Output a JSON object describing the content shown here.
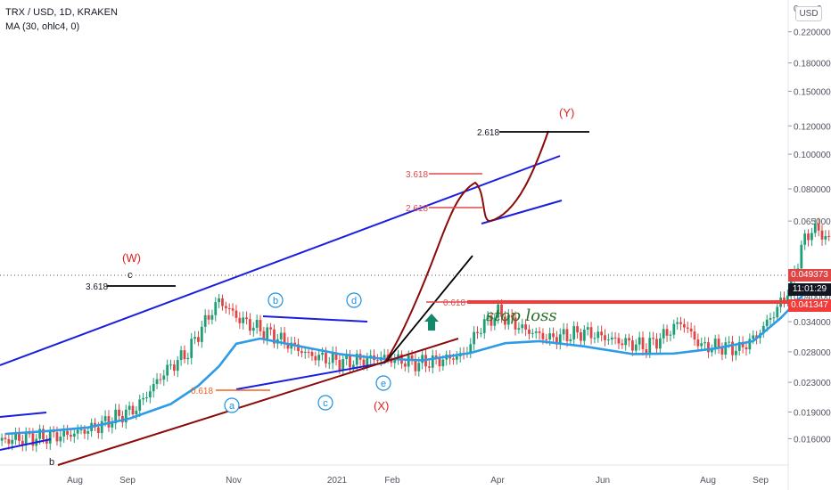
{
  "header": {
    "symbol_line": "TRX / USD, 1D, KRAKEN",
    "indicator_line": "MA (30, ohlc4, 0)",
    "currency_button": "USD"
  },
  "price_tags": {
    "last_price": "0.049373",
    "countdown": "11:01:29",
    "stop_price": "0.041347"
  },
  "colors": {
    "channel": "#1a1ee0",
    "lower_trend": "#8b0a0a",
    "ma_line": "#2d9be6",
    "candle_up": "#1e9e76",
    "candle_down": "#e04545",
    "stop_loss": "#f23b3b",
    "annotation_red": "#e02020",
    "wave_letters": "#1a8fe0",
    "fib_red": "#e04848",
    "fib_orange": "#f06020",
    "arrow": "#13896c",
    "stop_text": "#2b6e2b"
  },
  "chart_data": {
    "type": "line",
    "title": "TRX / USD, 1D, KRAKEN",
    "xlabel": "",
    "ylabel": "",
    "y_scale": "log",
    "ylim": [
      0.0135,
      0.27
    ],
    "grid": false,
    "x_ticks": [
      "Aug",
      "Sep",
      "Nov",
      "2021",
      "Feb",
      "Apr",
      "Jun",
      "Aug",
      "Sep"
    ],
    "y_ticks": [
      "0.220000",
      "0.180000",
      "0.150000",
      "0.120000",
      "0.100000",
      "0.080000",
      "0.065000",
      "0.040000",
      "0.034000",
      "0.028000",
      "0.023000",
      "0.019000",
      "0.016000"
    ],
    "series": [
      {
        "name": "MA (30, ohlc4, 0)",
        "x": [
          "Jul 3",
          "Jul 15",
          "Jul 27",
          "Aug 8",
          "Aug 20",
          "Aug 28",
          "Sep 3",
          "Sep 8",
          "Sep 15",
          "Sep 25",
          "Oct 8",
          "Oct 20",
          "Nov 1",
          "Nov 15",
          "Nov 25",
          "Dec 5",
          "Dec 18",
          "Jan 1",
          "Jan 13",
          "Jan 25",
          "Feb 5",
          "Feb 13",
          "Feb 22"
        ],
        "values": [
          0.0165,
          0.0168,
          0.0172,
          0.0182,
          0.02,
          0.0225,
          0.0255,
          0.0295,
          0.0305,
          0.0292,
          0.0276,
          0.0268,
          0.0265,
          0.0278,
          0.0296,
          0.03,
          0.029,
          0.0276,
          0.0277,
          0.0286,
          0.03,
          0.0348,
          0.0428
        ]
      }
    ],
    "annotations": [
      {
        "text": "(W)",
        "color": "red"
      },
      {
        "text": "c",
        "color": "black"
      },
      {
        "text": "3.618",
        "color": "black"
      },
      {
        "text": "0.618",
        "color": "orange"
      },
      {
        "text": "a",
        "color": "blue"
      },
      {
        "text": "b",
        "color": "blue"
      },
      {
        "text": "c",
        "color": "blue"
      },
      {
        "text": "d",
        "color": "blue"
      },
      {
        "text": "e",
        "color": "blue"
      },
      {
        "text": "(X)",
        "color": "red"
      },
      {
        "text": "b",
        "color": "black"
      },
      {
        "text": "3.618",
        "color": "red"
      },
      {
        "text": "2.618",
        "color": "red"
      },
      {
        "text": "2.618",
        "color": "black"
      },
      {
        "text": "(Y)",
        "color": "red"
      },
      {
        "text": "0.618",
        "color": "red"
      },
      {
        "text": "stop loss",
        "color": "green"
      }
    ]
  }
}
